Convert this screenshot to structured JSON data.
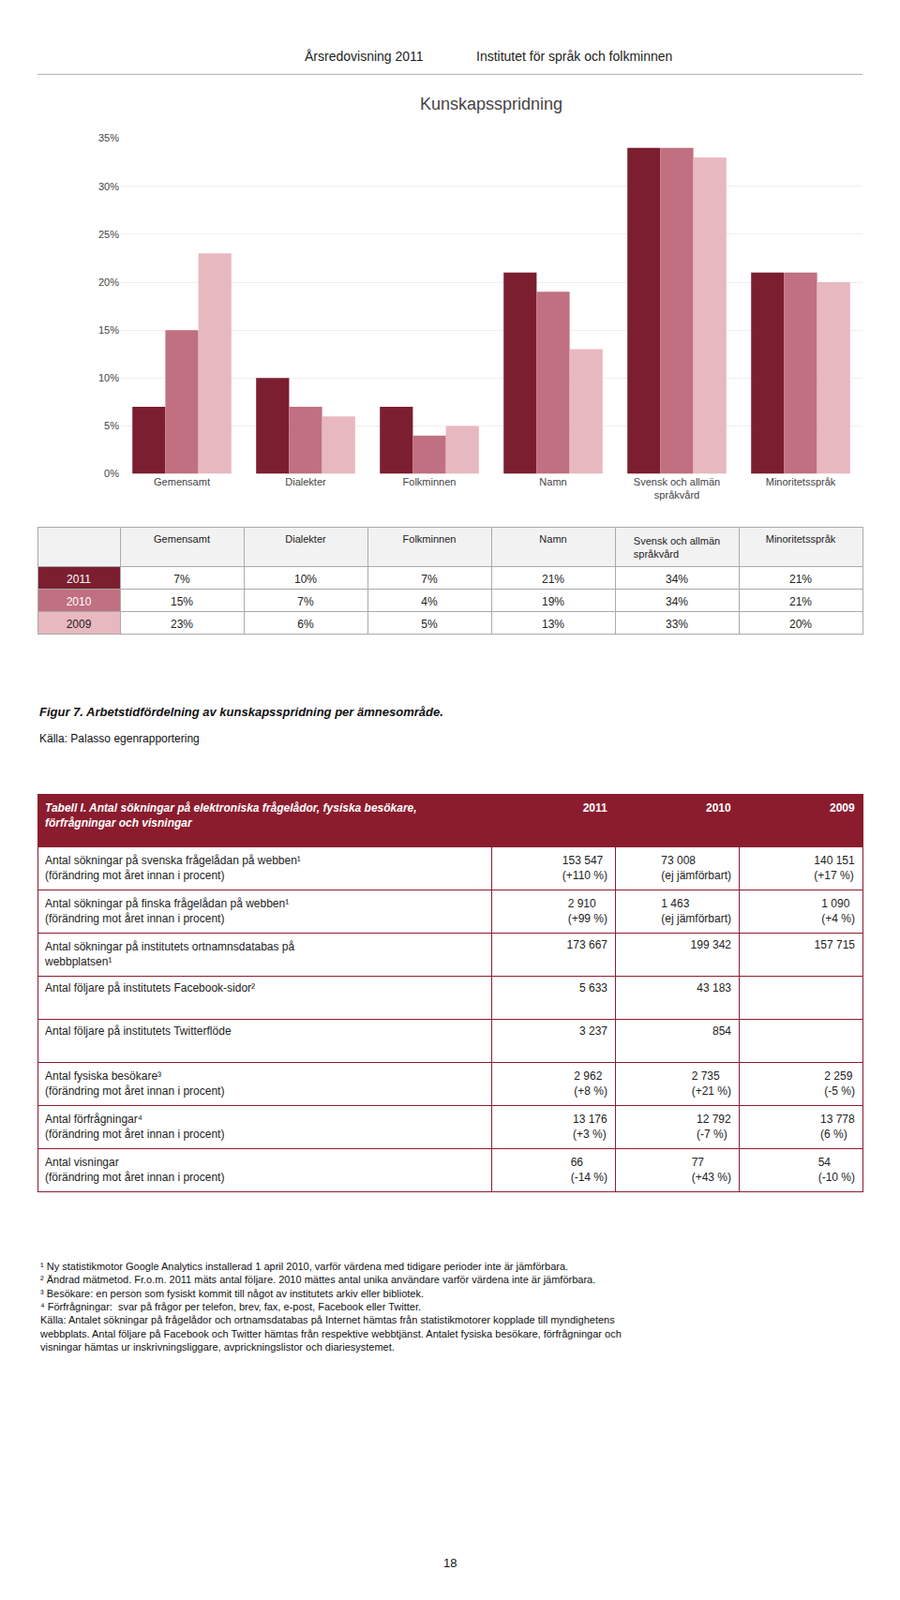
{
  "chart_data": [
    {
      "type": "bar",
      "title": "Kunskapsspridning",
      "categories": [
        "Gemensamt",
        "Dialekter",
        "Folkminnen",
        "Namn",
        "Svensk och allmän\nspråkvård",
        "Minoritetsspråk"
      ],
      "series": [
        {
          "name": "2011",
          "color": "#7B1E30",
          "values": [
            7,
            10,
            7,
            21,
            34,
            21
          ],
          "value_labels": [
            "7%",
            "10%",
            "7%",
            "21%",
            "34%",
            "21%"
          ]
        },
        {
          "name": "2010",
          "color": "#C07080",
          "values": [
            15,
            7,
            4,
            19,
            34,
            21
          ],
          "value_labels": [
            "15%",
            "7%",
            "4%",
            "19%",
            "34%",
            "21%"
          ]
        },
        {
          "name": "2009",
          "color": "#E8B8C0",
          "values": [
            23,
            6,
            5,
            13,
            33,
            20
          ],
          "value_labels": [
            "23%",
            "6%",
            "5%",
            "13%",
            "33%",
            "20%"
          ]
        }
      ],
      "ylim": [
        0,
        35
      ],
      "yticks": [
        {
          "value": 0,
          "label": "0%"
        },
        {
          "value": 5,
          "label": "5%"
        },
        {
          "value": 10,
          "label": "10%"
        },
        {
          "value": 15,
          "label": "15%"
        },
        {
          "value": 20,
          "label": "20%"
        },
        {
          "value": 25,
          "label": "25%"
        },
        {
          "value": 30,
          "label": "30%"
        },
        {
          "value": 35,
          "label": "35%"
        }
      ],
      "grid": true,
      "annotations": [
        "Årsredovisning 2011",
        "Institutet för språk och folkminnen",
        "Figur 7. Arbetstidfördelning av kunskapsspridning per ämnesområde.",
        "Källa: Palasso egenrapportering",
        "18"
      ]
    },
    {
      "type": "table",
      "title": "Tabell I. Antal sökningar på elektroniska frågelådor, fysiska besökare, förfrågningar och visningar",
      "color": "#8B1C2E",
      "categories": [
        "Antal sökningar på svenska frågelådan på webben¹",
        "Antal sökningar på finska frågelådan på webben¹",
        "Antal sökningar på institutets ortnamnsdatabas på\nwebbplatsen¹",
        "Antal följare på institutets Facebook-sidor²",
        "Antal följare på institutets Twitterflöde",
        "Antal fysiska besökare³",
        "Antal förfrågningar⁴",
        "Antal visningar"
      ],
      "sub_labels": [
        "(förändring mot året innan i procent)",
        "(förändring mot året innan i procent)",
        null,
        null,
        null,
        "(förändring mot året innan i procent)",
        "(förändring mot året innan i procent)",
        "(förändring mot året innan i procent)"
      ],
      "series": [
        {
          "name": "2011",
          "values": [
            153547,
            2910,
            173667,
            5633,
            3237,
            2962,
            13176,
            66
          ],
          "value_labels": [
            "153 547",
            "2 910",
            "173 667",
            "5 633",
            "3 237",
            "2 962",
            "13 176",
            "66"
          ],
          "change_labels": [
            "(+110 %)",
            "(+99 %)",
            null,
            null,
            null,
            "(+8 %)",
            "(+3 %)",
            "(-14 %)"
          ]
        },
        {
          "name": "2010",
          "values": [
            73008,
            1463,
            199342,
            43183,
            854,
            2735,
            12792,
            77
          ],
          "value_labels": [
            "73 008",
            "1 463",
            "199 342",
            "43 183",
            "854",
            "2 735",
            "12 792",
            "77"
          ],
          "change_labels": [
            "(ej jämförbart)",
            "(ej jämförbart)",
            null,
            null,
            null,
            "(+21 %)",
            "(-7 %)",
            "(+43 %)"
          ]
        },
        {
          "name": "2009",
          "values": [
            140151,
            1090,
            157715,
            null,
            null,
            2259,
            13778,
            54
          ],
          "value_labels": [
            "140 151",
            "1 090",
            "157 715",
            null,
            null,
            "2 259",
            "13 778",
            "54"
          ],
          "change_labels": [
            "(+17 %)",
            "(+4 %)",
            null,
            null,
            null,
            "(-5 %)",
            "(6 %)",
            "(-10 %)"
          ]
        }
      ],
      "annotations": [
        "¹ Ny statistikmotor Google Analytics installerad 1 april 2010, varför värdena med tidigare perioder inte är jämförbara.",
        "² Ändrad mätmetod. Fr.o.m. 2011 mäts antal följare. 2010 mättes antal unika användare varför värdena inte är jämförbara.",
        "³ Besökare: en person som fysiskt kommit till något av institutets arkiv eller bibliotek.",
        "⁴ Förfrågningar:  svar på frågor per telefon, brev, fax, e-post, Facebook eller Twitter.",
        "Källa: Antalet sökningar på frågelådor och ortnamsdatabas på Internet hämtas från statistikmotorer kopplade till myndighetens webbplats. Antal följare på Facebook och Twitter hämtas från respektive webbtjänst. Antalet fysiska besökare, förfrågningar och visningar hämtas ur inskrivningsliggare, avprickningslistor och diariesystemet."
      ]
    }
  ]
}
